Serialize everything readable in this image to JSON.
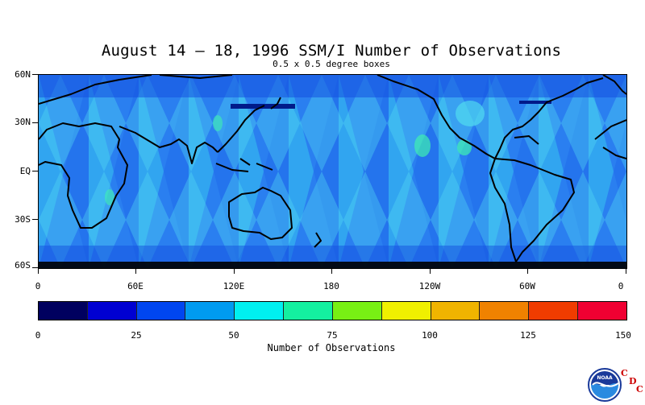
{
  "title": "August 14 – 18, 1996 SSM/I Number of Observations",
  "subtitle": "0.5 x 0.5 degree boxes",
  "lat_labels": [
    "60N",
    "30N",
    "EQ",
    "30S",
    "60S"
  ],
  "lon_labels": [
    "0",
    "60E",
    "120E",
    "180",
    "120W",
    "60W",
    "0"
  ],
  "colorbar": {
    "title": "Number of Observations",
    "tick_labels": [
      "0",
      "25",
      "50",
      "75",
      "100",
      "125",
      "150"
    ],
    "colors": [
      "#00005f",
      "#0000d2",
      "#0046f0",
      "#009bf0",
      "#00f0f0",
      "#14f0a0",
      "#78f014",
      "#f0f000",
      "#f0b400",
      "#f08200",
      "#f03c00",
      "#f00032"
    ]
  },
  "logo": {
    "agency": "NOAA",
    "letters": [
      "C",
      "D",
      "C"
    ]
  }
}
